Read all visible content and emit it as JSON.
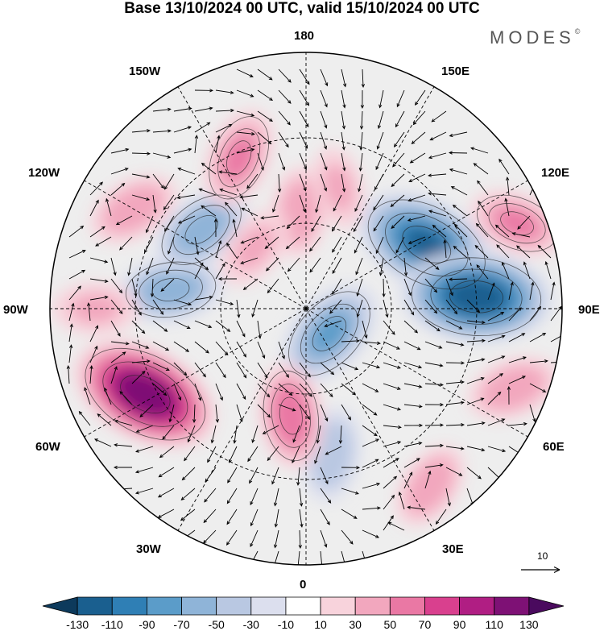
{
  "title": "Base 13/10/2024 00 UTC, valid 15/10/2024 00 UTC",
  "brand": "MODES",
  "brand_mark": "©",
  "longitude_labels": {
    "top": "180",
    "bottom": "0",
    "left": "90W",
    "right": "90E",
    "upper_left": "150W",
    "upper_right": "150E",
    "mid_left_upper": "120W",
    "mid_right_upper": "120E",
    "mid_left_lower": "60W",
    "mid_right_lower": "60E",
    "lower_left": "30W",
    "lower_right": "30E"
  },
  "vector_reference": {
    "value": "10"
  },
  "colorbar": {
    "ticks": [
      "-130",
      "-110",
      "-90",
      "-70",
      "-50",
      "-30",
      "-10",
      "10",
      "30",
      "50",
      "70",
      "90",
      "110",
      "130"
    ],
    "colors": [
      "#0d3a5c",
      "#1a5f8f",
      "#2f7fb5",
      "#5b9cc9",
      "#8fb4d8",
      "#b9c8e2",
      "#dcdfee",
      "#ffffff",
      "#f8d3dc",
      "#f2a7be",
      "#ea78a4",
      "#d9408e",
      "#b01e83",
      "#7e1175",
      "#4a0a5e"
    ]
  },
  "anomaly_centers": [
    {
      "lon_deg": 118,
      "colat_deg": 48,
      "value": -115
    },
    {
      "lon_deg": 94,
      "colat_deg": 60,
      "value": -120
    },
    {
      "lon_deg": 43,
      "colat_deg": 12,
      "value": -75
    },
    {
      "lon_deg": 10,
      "colat_deg": 52,
      "value": -45
    },
    {
      "lon_deg": 262,
      "colat_deg": 48,
      "value": -60
    },
    {
      "lon_deg": 233,
      "colat_deg": 46,
      "value": -60
    },
    {
      "lon_deg": 298,
      "colat_deg": 64,
      "value": 120
    },
    {
      "lon_deg": 112,
      "colat_deg": 80,
      "value": 50
    },
    {
      "lon_deg": 69,
      "colat_deg": 78,
      "value": 45
    },
    {
      "lon_deg": 35,
      "colat_deg": 76,
      "value": 40
    },
    {
      "lon_deg": 240,
      "colat_deg": 70,
      "value": 45
    },
    {
      "lon_deg": 204,
      "colat_deg": 58,
      "value": 55
    },
    {
      "lon_deg": 184,
      "colat_deg": 34,
      "value": 40
    },
    {
      "lon_deg": 165,
      "colat_deg": 44,
      "value": 30
    },
    {
      "lon_deg": 270,
      "colat_deg": 74,
      "value": 35
    },
    {
      "lon_deg": 352,
      "colat_deg": 38,
      "value": 60
    },
    {
      "lon_deg": 220,
      "colat_deg": 28,
      "value": 35
    }
  ]
}
